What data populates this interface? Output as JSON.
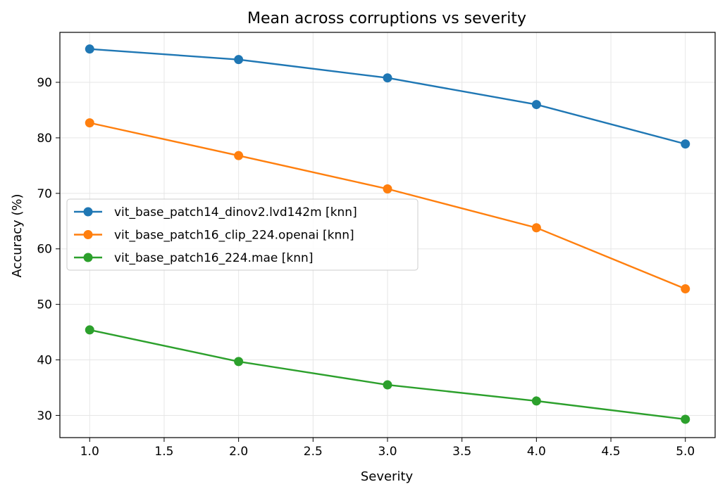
{
  "chart_data": {
    "type": "line",
    "title": "Mean across corruptions vs severity",
    "xlabel": "Severity",
    "ylabel": "Accuracy (%)",
    "xlim": [
      0.8,
      5.2
    ],
    "ylim": [
      26,
      99
    ],
    "x_ticks": [
      "1.0",
      "1.5",
      "2.0",
      "2.5",
      "3.0",
      "3.5",
      "4.0",
      "4.5",
      "5.0"
    ],
    "y_ticks": [
      "30",
      "40",
      "50",
      "60",
      "70",
      "80",
      "90"
    ],
    "grid": true,
    "legend_position": "center-left",
    "x": [
      1.0,
      2.0,
      3.0,
      4.0,
      5.0
    ],
    "series": [
      {
        "name": "vit_base_patch14_dinov2.lvd142m [knn]",
        "color": "#1f77b4",
        "marker": "circle",
        "values": [
          96.0,
          94.1,
          90.8,
          86.0,
          78.9
        ]
      },
      {
        "name": "vit_base_patch16_clip_224.openai [knn]",
        "color": "#ff7f0e",
        "marker": "circle",
        "values": [
          82.7,
          76.8,
          70.8,
          63.8,
          52.8
        ]
      },
      {
        "name": "vit_base_patch16_224.mae [knn]",
        "color": "#2ca02c",
        "marker": "circle",
        "values": [
          45.4,
          39.7,
          35.5,
          32.6,
          29.3
        ]
      }
    ]
  }
}
